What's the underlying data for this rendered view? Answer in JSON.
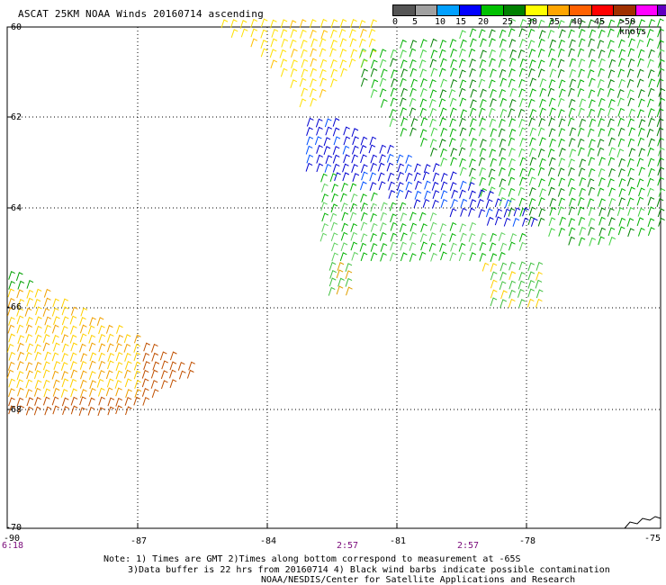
{
  "title": "ASCAT 25KM NOAA Winds 20160714 ascending",
  "colorbar": {
    "colors": [
      "#555555",
      "#a0a0a0",
      "#00a0ff",
      "#0000ff",
      "#00c000",
      "#008000",
      "#ffff00",
      "#ffa500",
      "#ff6000",
      "#ff0000",
      "#a03000",
      "#ff00ff",
      "#6000c0"
    ],
    "labels": [
      "0",
      "5",
      "10",
      "15",
      "20",
      "25",
      "30",
      "35",
      "40",
      "45",
      ">50 knots"
    ]
  },
  "axes": {
    "lat_labels": [
      "-60",
      "-62",
      "-64",
      "-66",
      "-68",
      "-70"
    ],
    "lon_labels": [
      "-90",
      "-87",
      "-84",
      "-81",
      "-78",
      "-75"
    ]
  },
  "times": [
    "6:18",
    "2:57",
    "2:57"
  ],
  "notes": {
    "line1": "Note: 1) Times are GMT 2)Times along bottom correspond to measurement at -65S",
    "line2": "3)Data buffer is 22 hrs from 20160714 4) Black wind barbs indicate possible contamination",
    "line3": "NOAA/NESDIS/Center for Satellite Applications and Research"
  }
}
